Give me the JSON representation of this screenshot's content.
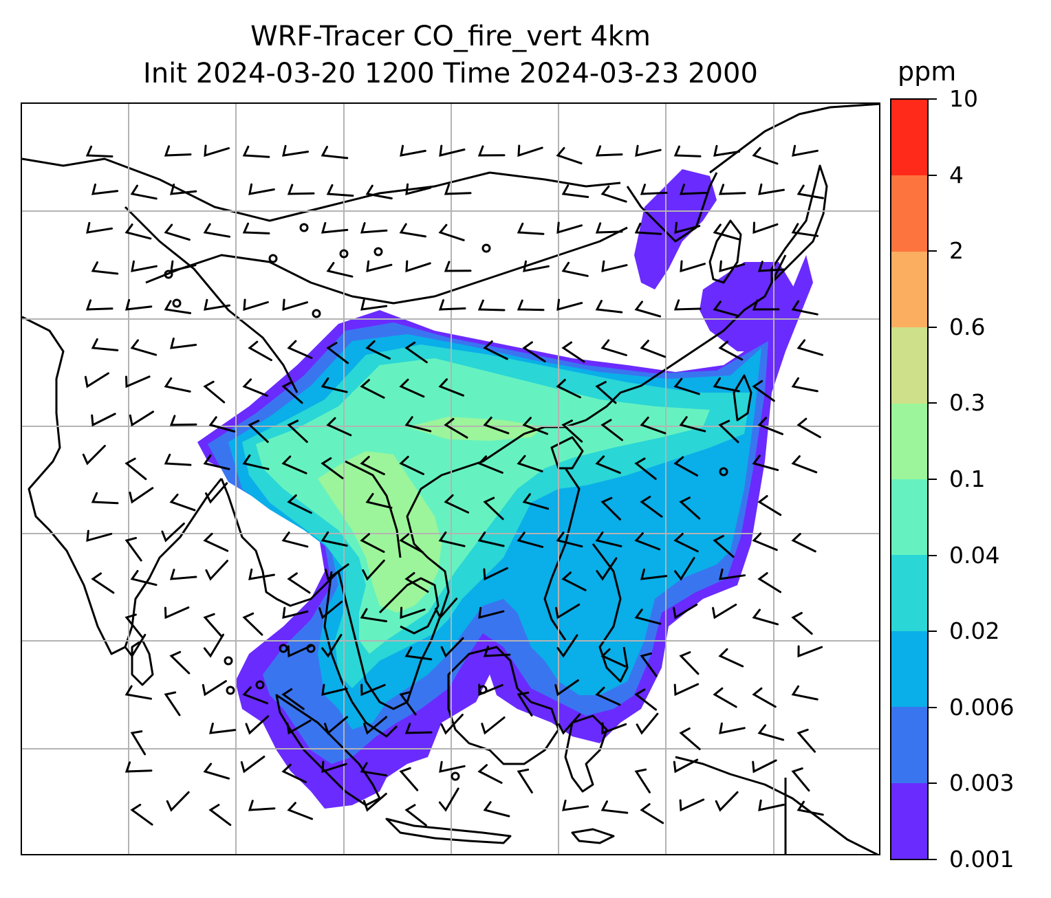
{
  "title": {
    "line1": "WRF-Tracer CO_fire_vert 4km",
    "line2": "Init 2024-03-20 1200 Time 2024-03-23 2000"
  },
  "colorbar": {
    "unit": "ppm",
    "levels": [
      "0.001",
      "0.003",
      "0.006",
      "0.02",
      "0.04",
      "0.1",
      "0.3",
      "0.6",
      "2",
      "4",
      "10"
    ],
    "colors": [
      "#6a2bff",
      "#3a75f0",
      "#0aaee8",
      "#2ad6d6",
      "#66f2c0",
      "#9cf59a",
      "#cfe08a",
      "#fcae60",
      "#fe743e",
      "#ff2a1a"
    ]
  },
  "map": {
    "field": "CO_fire_vert",
    "gridlines": true,
    "grid_color": "#b3b3b3",
    "coastline_color": "#000000",
    "overlay": "wind barbs"
  }
}
